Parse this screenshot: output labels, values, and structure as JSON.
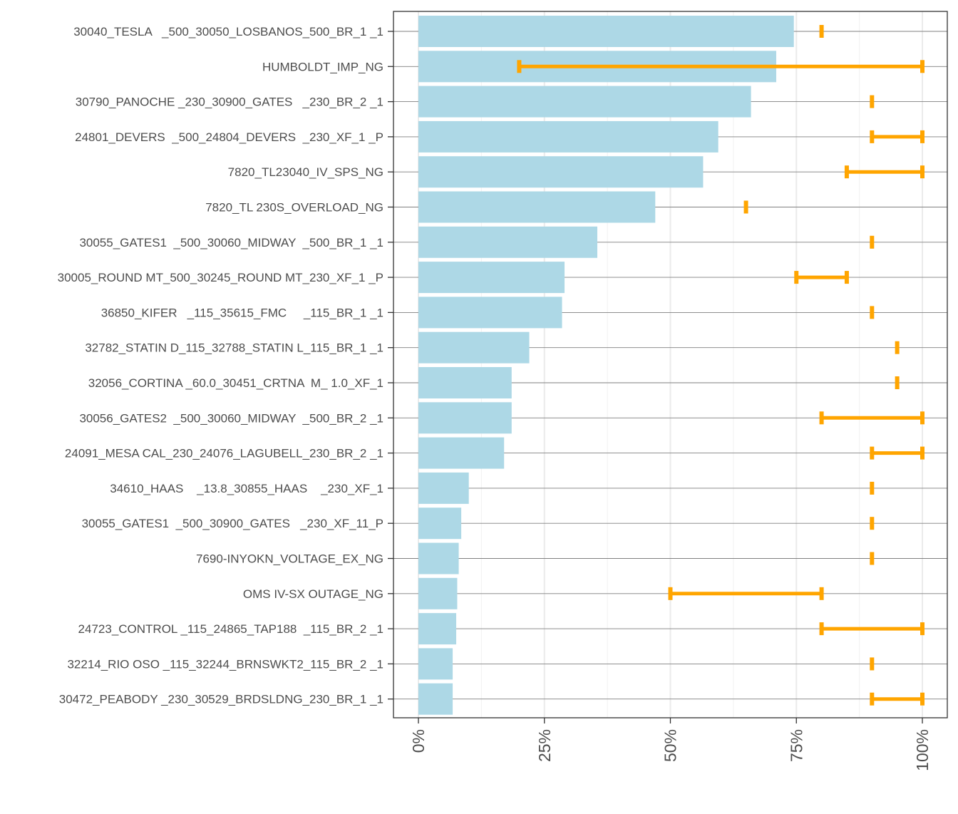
{
  "chart_data": {
    "type": "bar",
    "orientation": "horizontal",
    "title": "",
    "xlabel": "",
    "ylabel": "",
    "xlim": [
      0,
      1
    ],
    "x_ticks": [
      {
        "value": 0,
        "label": "0%"
      },
      {
        "value": 0.25,
        "label": "25%"
      },
      {
        "value": 0.5,
        "label": "50%"
      },
      {
        "value": 0.75,
        "label": "75%"
      },
      {
        "value": 1,
        "label": "100%"
      }
    ],
    "grid": true,
    "colors": {
      "bar": "#add8e6",
      "range": "#ffa500",
      "grid_major": "#ebebeb",
      "grid_minor": "#f2f2f2",
      "row_line": "#7f7f7f",
      "axis": "#333333",
      "text": "#4d4d4d"
    },
    "series": [
      {
        "name": "bar",
        "type": "bar",
        "values": [
          0.745,
          0.71,
          0.66,
          0.595,
          0.565,
          0.47,
          0.355,
          0.29,
          0.285,
          0.22,
          0.185,
          0.185,
          0.17,
          0.1,
          0.085,
          0.08,
          0.077,
          0.075,
          0.068,
          0.068
        ]
      },
      {
        "name": "range",
        "type": "errorbar",
        "low": [
          0.8,
          0.2,
          0.9,
          0.9,
          0.85,
          0.65,
          0.9,
          0.75,
          0.9,
          0.95,
          0.95,
          0.8,
          0.9,
          0.9,
          0.9,
          0.9,
          0.5,
          0.8,
          0.9,
          0.9
        ],
        "high": [
          0.8,
          1.0,
          0.9,
          1.0,
          1.0,
          0.65,
          0.9,
          0.85,
          0.9,
          0.95,
          0.95,
          1.0,
          1.0,
          0.9,
          0.9,
          0.9,
          0.8,
          1.0,
          0.9,
          1.0
        ]
      }
    ],
    "categories": [
      "30040_TESLA   _500_30050_LOSBANOS_500_BR_1 _1",
      "HUMBOLDT_IMP_NG",
      "30790_PANOCHE _230_30900_GATES   _230_BR_2 _1",
      "24801_DEVERS  _500_24804_DEVERS  _230_XF_1 _P",
      "7820_TL23040_IV_SPS_NG",
      "7820_TL 230S_OVERLOAD_NG",
      "30055_GATES1  _500_30060_MIDWAY  _500_BR_1 _1",
      "30005_ROUND MT_500_30245_ROUND MT_230_XF_1 _P",
      "36850_KIFER   _115_35615_FMC     _115_BR_1 _1",
      "32782_STATIN D_115_32788_STATIN L_115_BR_1 _1",
      "32056_CORTINA _60.0_30451_CRTNA  M_ 1.0_XF_1",
      "30056_GATES2  _500_30060_MIDWAY  _500_BR_2 _1",
      "24091_MESA CAL_230_24076_LAGUBELL_230_BR_2 _1",
      "34610_HAAS    _13.8_30855_HAAS    _230_XF_1",
      "30055_GATES1  _500_30900_GATES   _230_XF_11_P",
      "7690-INYOKN_VOLTAGE_EX_NG",
      "OMS IV-SX OUTAGE_NG",
      "24723_CONTROL _115_24865_TAP188  _115_BR_2 _1",
      "32214_RIO OSO _115_32244_BRNSWKT2_115_BR_2 _1",
      "30472_PEABODY _230_30529_BRDSLDNG_230_BR_1 _1"
    ]
  }
}
